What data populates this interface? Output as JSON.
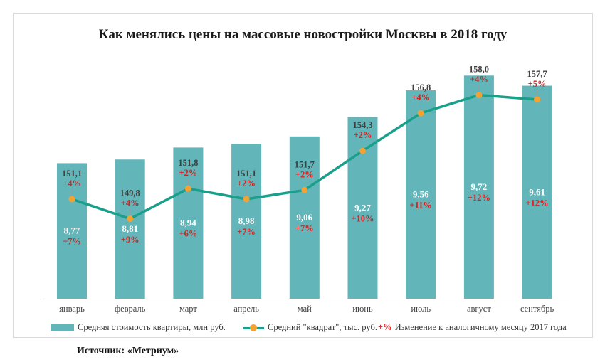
{
  "chart_data": {
    "type": "bar",
    "title": "Как менялись цены на массовые новостройки Москвы в 2018 году",
    "categories": [
      "январь",
      "февраль",
      "март",
      "апрель",
      "май",
      "июнь",
      "июль",
      "август",
      "сентябрь"
    ],
    "series": [
      {
        "name": "Средняя стоимость квартиры, млн руб.",
        "type": "bar",
        "values": [
          8.77,
          8.81,
          8.94,
          8.98,
          9.06,
          9.27,
          9.56,
          9.72,
          9.61
        ],
        "labels": [
          "8,77",
          "8,81",
          "8,94",
          "8,98",
          "9,06",
          "9,27",
          "9,56",
          "9,72",
          "9,61"
        ],
        "yoy_change": [
          "+7%",
          "+9%",
          "+6%",
          "+7%",
          "+7%",
          "+10%",
          "+11%",
          "+12%",
          "+12%"
        ],
        "color": "#62b5b8"
      },
      {
        "name": "Средний \"квадрат\", тыс. руб.",
        "type": "line",
        "values": [
          151.1,
          149.8,
          151.8,
          151.1,
          151.7,
          154.3,
          156.8,
          158.0,
          157.7
        ],
        "labels": [
          "151,1",
          "149,8",
          "151,8",
          "151,1",
          "151,7",
          "154,3",
          "156,8",
          "158,0",
          "157,7"
        ],
        "yoy_change": [
          "+4%",
          "+4%",
          "+2%",
          "+2%",
          "+2%",
          "+2%",
          "+4%",
          "+4%",
          "+5%"
        ],
        "color": "#1a9f8a",
        "marker_color": "#f4a233"
      }
    ],
    "legend_change_key": "+%",
    "legend_change_label": "Изменение к аналогичному месяцу 2017 года",
    "legend_placement": "bottom",
    "grid": false,
    "bar_axis_range": [
      7.3,
      10.0
    ],
    "line_axis_range": [
      144.5,
      161.0
    ],
    "change_color": "#e01e1e"
  },
  "source": "Источник: «Метриум»"
}
